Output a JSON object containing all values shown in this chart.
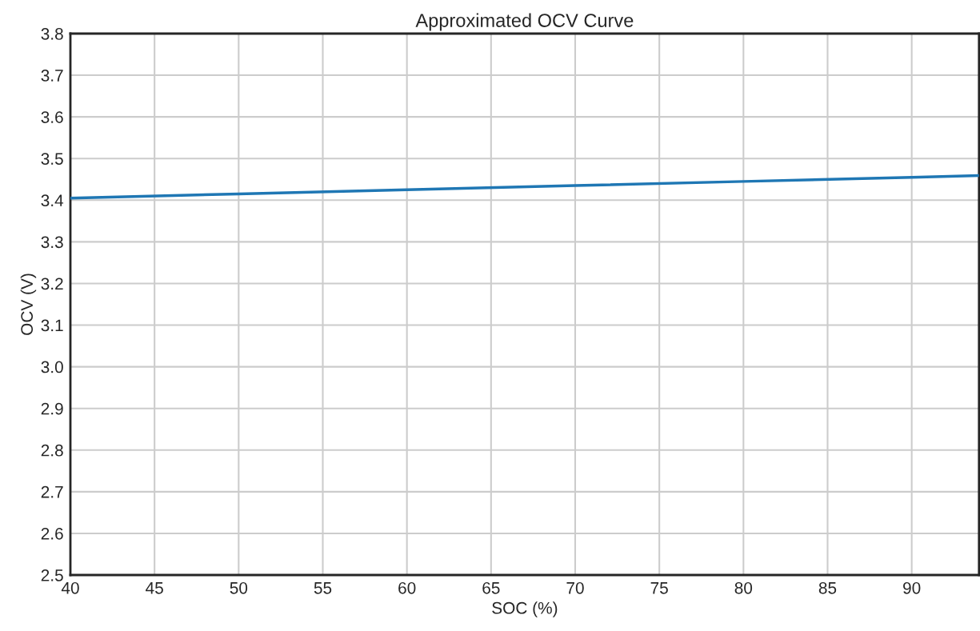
{
  "chart_data": {
    "type": "line",
    "title": "Approximated OCV Curve",
    "xlabel": "SOC (%)",
    "ylabel": "OCV (V)",
    "x": [
      40,
      50,
      60,
      70,
      80,
      90,
      94
    ],
    "series": [
      {
        "color": "#1f77b4",
        "values": [
          3.405,
          3.415,
          3.425,
          3.435,
          3.445,
          3.455,
          3.459
        ]
      }
    ],
    "xlim": [
      40,
      94
    ],
    "xticks": [
      40,
      45,
      50,
      55,
      60,
      65,
      70,
      75,
      80,
      85,
      90
    ],
    "ylim": [
      2.5,
      3.8
    ],
    "yticks": [
      {
        "value": 2.5,
        "label": "2.5"
      },
      {
        "value": 2.6,
        "label": "2.6"
      },
      {
        "value": 2.7,
        "label": "2.7"
      },
      {
        "value": 2.8,
        "label": "2.8"
      },
      {
        "value": 2.9,
        "label": "2.9"
      },
      {
        "value": 3.0,
        "label": "3.0"
      },
      {
        "value": 3.1,
        "label": "3.1"
      },
      {
        "value": 3.2,
        "label": "3.2"
      },
      {
        "value": 3.3,
        "label": "3.3"
      },
      {
        "value": 3.4,
        "label": "3.4"
      },
      {
        "value": 3.5,
        "label": "3.5"
      },
      {
        "value": 3.6,
        "label": "3.6"
      },
      {
        "value": 3.7,
        "label": "3.7"
      },
      {
        "value": 3.8,
        "label": "3.8"
      }
    ],
    "grid": true,
    "legend": false,
    "marker": "none",
    "line_style": "solid"
  }
}
